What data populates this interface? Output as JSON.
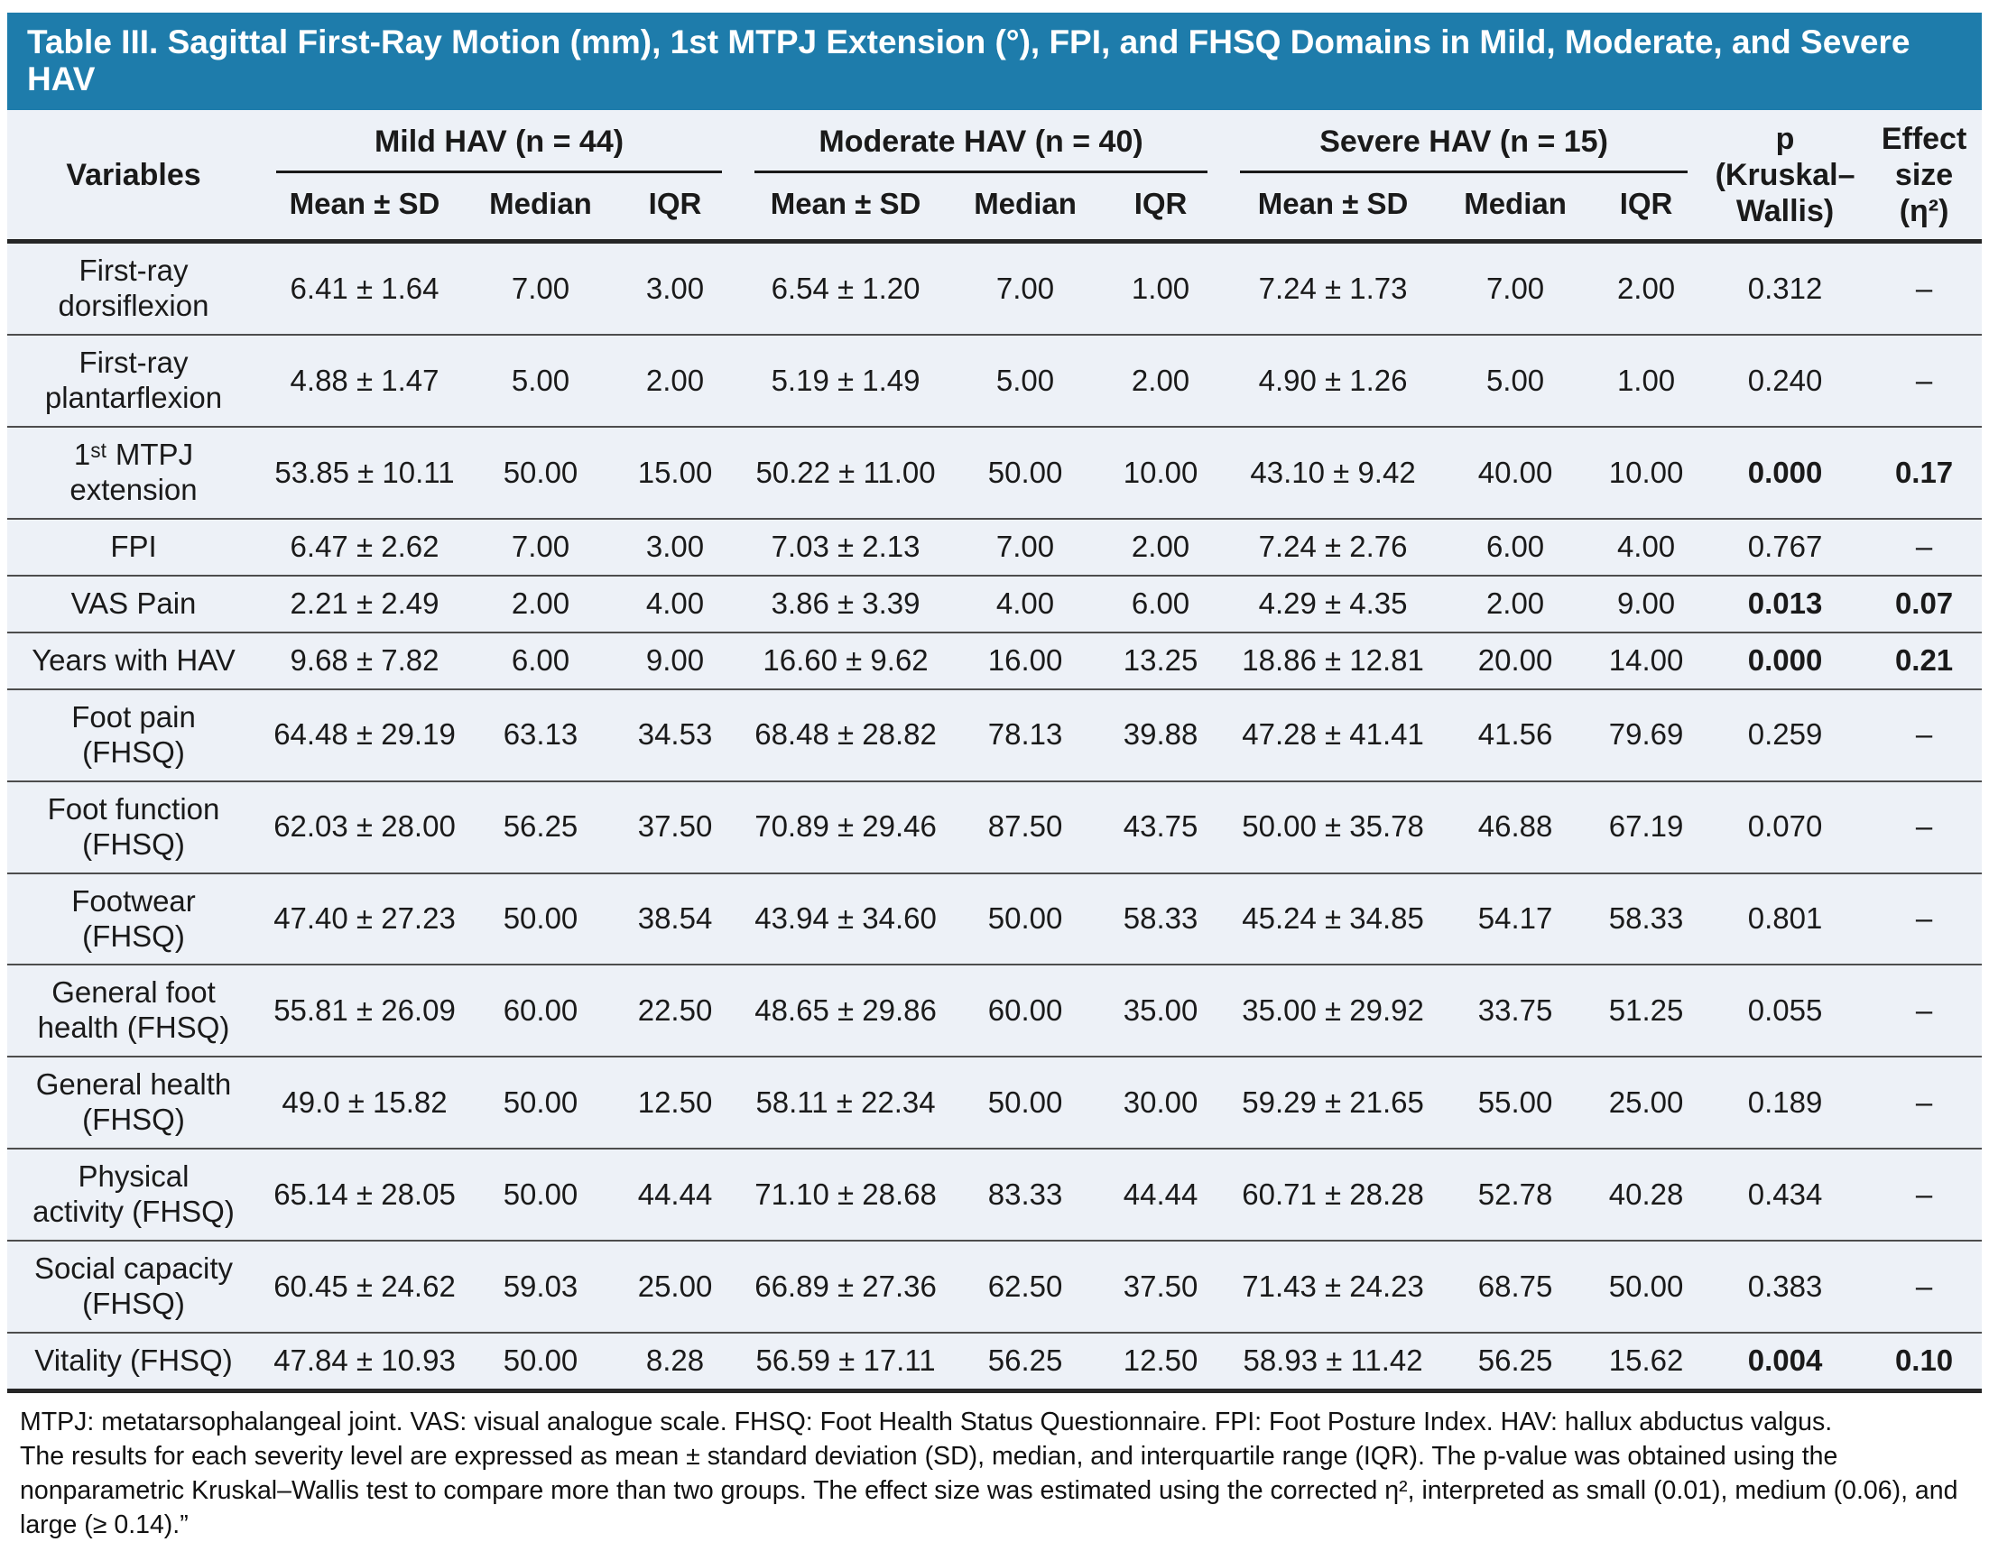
{
  "title": "Table III. Sagittal First-Ray Motion (mm), 1st MTPJ Extension (°), FPI, and FHSQ Domains in Mild, Moderate, and Severe HAV",
  "colors": {
    "title_bar": "#1e7cab",
    "table_background": "#edf1f7",
    "rule": "#262626"
  },
  "table": {
    "variables_header": "Variables",
    "groups": [
      {
        "label": "Mild HAV (n = 44)"
      },
      {
        "label": "Moderate HAV (n = 40)"
      },
      {
        "label": "Severe HAV (n = 15)"
      }
    ],
    "sub_headers": [
      "Mean ± SD",
      "Median",
      "IQR"
    ],
    "p_header": "p (Kruskal–Wallis)",
    "effect_header": "Effect size (η²)",
    "rows": [
      {
        "variable": "First-ray dorsiflexion",
        "mild": [
          "6.41 ± 1.64",
          "7.00",
          "3.00"
        ],
        "moderate": [
          "6.54 ± 1.20",
          "7.00",
          "1.00"
        ],
        "severe": [
          "7.24 ± 1.73",
          "7.00",
          "2.00"
        ],
        "p": "0.312",
        "effect": "–",
        "significant": false
      },
      {
        "variable": "First-ray plantarflexion",
        "mild": [
          "4.88 ± 1.47",
          "5.00",
          "2.00"
        ],
        "moderate": [
          "5.19 ± 1.49",
          "5.00",
          "2.00"
        ],
        "severe": [
          "4.90 ± 1.26",
          "5.00",
          "1.00"
        ],
        "p": "0.240",
        "effect": "–",
        "significant": false
      },
      {
        "variable": "1ˢᵗ MTPJ extension",
        "mild": [
          "53.85 ± 10.11",
          "50.00",
          "15.00"
        ],
        "moderate": [
          "50.22 ± 11.00",
          "50.00",
          "10.00"
        ],
        "severe": [
          "43.10 ± 9.42",
          "40.00",
          "10.00"
        ],
        "p": "0.000",
        "effect": "0.17",
        "significant": true
      },
      {
        "variable": "FPI",
        "mild": [
          "6.47 ± 2.62",
          "7.00",
          "3.00"
        ],
        "moderate": [
          "7.03 ± 2.13",
          "7.00",
          "2.00"
        ],
        "severe": [
          "7.24 ± 2.76",
          "6.00",
          "4.00"
        ],
        "p": "0.767",
        "effect": "–",
        "significant": false
      },
      {
        "variable": "VAS Pain",
        "mild": [
          "2.21 ± 2.49",
          "2.00",
          "4.00"
        ],
        "moderate": [
          "3.86 ± 3.39",
          "4.00",
          "6.00"
        ],
        "severe": [
          "4.29 ± 4.35",
          "2.00",
          "9.00"
        ],
        "p": "0.013",
        "effect": "0.07",
        "significant": true
      },
      {
        "variable": "Years with HAV",
        "mild": [
          "9.68 ± 7.82",
          "6.00",
          "9.00"
        ],
        "moderate": [
          "16.60 ± 9.62",
          "16.00",
          "13.25"
        ],
        "severe": [
          "18.86 ± 12.81",
          "20.00",
          "14.00"
        ],
        "p": "0.000",
        "effect": "0.21",
        "significant": true
      },
      {
        "variable": "Foot pain (FHSQ)",
        "mild": [
          "64.48 ± 29.19",
          "63.13",
          "34.53"
        ],
        "moderate": [
          "68.48 ± 28.82",
          "78.13",
          "39.88"
        ],
        "severe": [
          "47.28 ± 41.41",
          "41.56",
          "79.69"
        ],
        "p": "0.259",
        "effect": "–",
        "significant": false
      },
      {
        "variable": "Foot function (FHSQ)",
        "mild": [
          "62.03 ± 28.00",
          "56.25",
          "37.50"
        ],
        "moderate": [
          "70.89 ± 29.46",
          "87.50",
          "43.75"
        ],
        "severe": [
          "50.00 ± 35.78",
          "46.88",
          "67.19"
        ],
        "p": "0.070",
        "effect": "–",
        "significant": false
      },
      {
        "variable": "Footwear (FHSQ)",
        "mild": [
          "47.40 ± 27.23",
          "50.00",
          "38.54"
        ],
        "moderate": [
          "43.94 ± 34.60",
          "50.00",
          "58.33"
        ],
        "severe": [
          "45.24 ± 34.85",
          "54.17",
          "58.33"
        ],
        "p": "0.801",
        "effect": "–",
        "significant": false
      },
      {
        "variable": "General foot health (FHSQ)",
        "mild": [
          "55.81 ± 26.09",
          "60.00",
          "22.50"
        ],
        "moderate": [
          "48.65 ± 29.86",
          "60.00",
          "35.00"
        ],
        "severe": [
          "35.00 ± 29.92",
          "33.75",
          "51.25"
        ],
        "p": "0.055",
        "effect": "–",
        "significant": false
      },
      {
        "variable": "General health (FHSQ)",
        "mild": [
          "49.0 ± 15.82",
          "50.00",
          "12.50"
        ],
        "moderate": [
          "58.11 ± 22.34",
          "50.00",
          "30.00"
        ],
        "severe": [
          "59.29 ± 21.65",
          "55.00",
          "25.00"
        ],
        "p": "0.189",
        "effect": "–",
        "significant": false
      },
      {
        "variable": "Physical activity (FHSQ)",
        "mild": [
          "65.14 ± 28.05",
          "50.00",
          "44.44"
        ],
        "moderate": [
          "71.10 ± 28.68",
          "83.33",
          "44.44"
        ],
        "severe": [
          "60.71 ± 28.28",
          "52.78",
          "40.28"
        ],
        "p": "0.434",
        "effect": "–",
        "significant": false
      },
      {
        "variable": "Social capacity (FHSQ)",
        "mild": [
          "60.45 ± 24.62",
          "59.03",
          "25.00"
        ],
        "moderate": [
          "66.89 ± 27.36",
          "62.50",
          "37.50"
        ],
        "severe": [
          "71.43 ± 24.23",
          "68.75",
          "50.00"
        ],
        "p": "0.383",
        "effect": "–",
        "significant": false
      },
      {
        "variable": "Vitality (FHSQ)",
        "mild": [
          "47.84 ± 10.93",
          "50.00",
          "8.28"
        ],
        "moderate": [
          "56.59 ± 17.11",
          "56.25",
          "12.50"
        ],
        "severe": [
          "58.93 ± 11.42",
          "56.25",
          "15.62"
        ],
        "p": "0.004",
        "effect": "0.10",
        "significant": true
      }
    ]
  },
  "footnotes": [
    "MTPJ: metatarsophalangeal joint. VAS: visual analogue scale. FHSQ: Foot Health Status Questionnaire. FPI: Foot Posture Index. HAV: hallux abductus valgus.",
    "The results for each severity level are expressed as mean ± standard deviation (SD), median, and interquartile range (IQR). The p-value was obtained using the nonparametric Kruskal–Wallis test to compare more than two groups. The effect size was estimated using the corrected η², interpreted as small (0.01), medium (0.06), and large (≥ 0.14).”"
  ]
}
